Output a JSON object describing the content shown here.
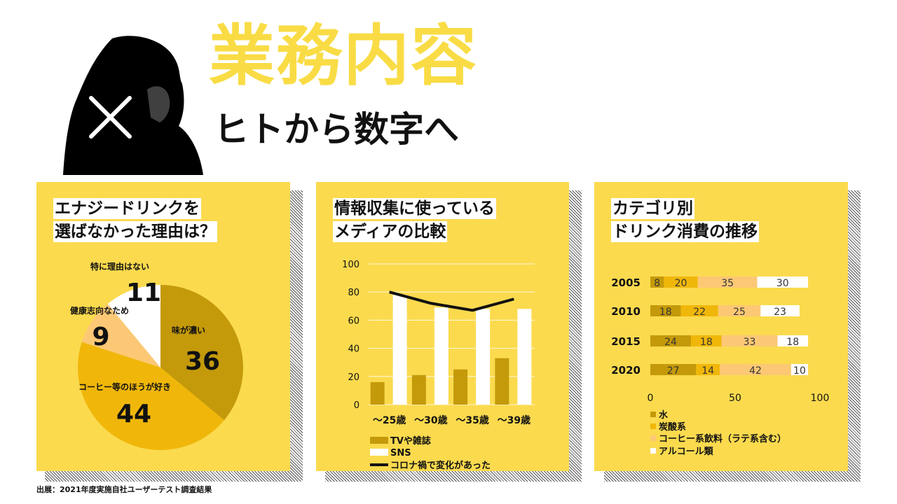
{
  "header": {
    "title": "業務内容",
    "subtitle": "ヒトから数字へ"
  },
  "colors": {
    "panel_bg": "#fbda4e",
    "title_yellow": "#f9dc45",
    "dark_gold": "#c49a0a",
    "gold": "#f0b70a",
    "peach": "#fcc875",
    "white": "#ffffff",
    "line": "#111111"
  },
  "icons": [
    "person-silhouette-icon",
    "cross-icon"
  ],
  "panels": [
    {
      "title_lines": [
        "エナジードリンクを",
        "選ばなかった理由は？"
      ]
    },
    {
      "title_lines": [
        "情報収集に使っている",
        "メディアの比較"
      ]
    },
    {
      "title_lines": [
        "カテゴリ別",
        "ドリンク消費の推移"
      ]
    }
  ],
  "chart_data": [
    {
      "type": "pie",
      "labels": [
        "味が濃い",
        "コーヒー等のほうが好き",
        "健康志向なため",
        "特に理由はない"
      ],
      "values": [
        36,
        44,
        9,
        11
      ],
      "value_labels": [
        "36",
        "44",
        "9",
        "11"
      ],
      "colors": [
        "#c49a0a",
        "#f0b70a",
        "#fcc875",
        "#ffffff"
      ]
    },
    {
      "type": "bar",
      "categories": [
        "～25歳",
        "～30歳",
        "～35歳",
        "～39歳"
      ],
      "series": [
        {
          "name": "TVや雑誌",
          "values": [
            16,
            21,
            25,
            33
          ],
          "color": "#c49a0a"
        },
        {
          "name": "SNS",
          "values": [
            78,
            69,
            68,
            68
          ],
          "color": "#ffffff"
        }
      ],
      "line_series": {
        "name": "コロナ禍で変化があった",
        "values": [
          80,
          72,
          67,
          75
        ],
        "color": "#111111"
      },
      "ylim": [
        0,
        100
      ],
      "yticks": [
        "0",
        "20",
        "40",
        "60",
        "80",
        "100"
      ],
      "grid": true,
      "legend": "bottom-left"
    },
    {
      "type": "bar",
      "orientation": "horizontal",
      "stacked": true,
      "categories": [
        "2005",
        "2010",
        "2015",
        "2020"
      ],
      "series": [
        {
          "name": "水",
          "values": [
            8,
            18,
            24,
            27
          ],
          "color": "#c49a0a"
        },
        {
          "name": "炭酸系",
          "values": [
            20,
            22,
            18,
            14
          ],
          "color": "#f0b70a"
        },
        {
          "name": "コーヒー系飲料（ラテ系含む）",
          "values": [
            35,
            25,
            33,
            42
          ],
          "color": "#fcc875"
        },
        {
          "name": "アルコール類",
          "values": [
            30,
            23,
            18,
            10
          ],
          "color": "#ffffff"
        }
      ],
      "xlim": [
        0,
        100
      ],
      "xticks": [
        "0",
        "50",
        "100"
      ],
      "legend": "bottom-left"
    }
  ],
  "source": "出展：2021年度実施自社ユーザーテスト調査結果"
}
